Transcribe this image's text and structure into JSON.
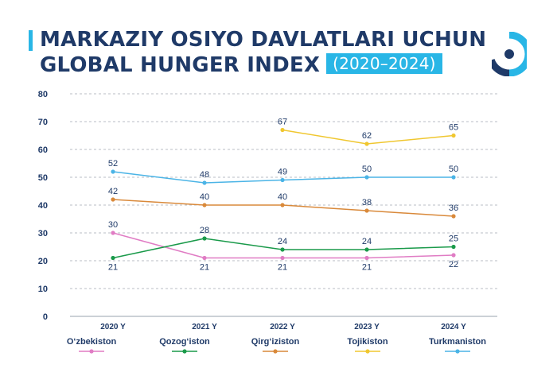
{
  "header": {
    "title_line1": "MARKAZIY OSIYO DAVLATLARI UCHUN",
    "title_line2": "GLOBAL HUNGER INDEX",
    "years": "(2020–2024)",
    "accent": "#29b6e6",
    "title_color": "#1f3a68"
  },
  "logo": {
    "icon": "brand-logo-icon"
  },
  "chart_data": {
    "type": "line",
    "categories": [
      "2020 Y",
      "2021 Y",
      "2022 Y",
      "2023 Y",
      "2024 Y"
    ],
    "ylim": [
      0,
      80
    ],
    "yticks": [
      0,
      10,
      20,
      30,
      40,
      50,
      60,
      70,
      80
    ],
    "grid": true,
    "legend": "bottom",
    "series": [
      {
        "name": "O‘zbekiston",
        "color": "#e07cc4",
        "values": [
          30,
          21,
          21,
          21,
          22
        ],
        "labels": [
          "30",
          "21",
          "21",
          "21",
          "22"
        ],
        "label_pos": [
          "above",
          "below",
          "below",
          "below",
          "below"
        ]
      },
      {
        "name": "Qozog‘iston",
        "color": "#1a9a4a",
        "values": [
          21,
          28,
          24,
          24,
          25
        ],
        "labels": [
          "21",
          "28",
          "24",
          "24",
          "25"
        ],
        "label_pos": [
          "below",
          "above",
          "above",
          "above",
          "above"
        ]
      },
      {
        "name": "Qirg‘iziston",
        "color": "#d9893a",
        "values": [
          42,
          40,
          40,
          38,
          36
        ],
        "labels": [
          "42",
          "40",
          "40",
          "38",
          "36"
        ],
        "label_pos": [
          "above",
          "above",
          "above",
          "above",
          "above"
        ]
      },
      {
        "name": "Tojikiston",
        "color": "#f0c730",
        "values": [
          null,
          null,
          67,
          62,
          65
        ],
        "labels": [
          null,
          null,
          "67",
          "62",
          "65"
        ],
        "label_pos": [
          "above",
          "above",
          "above",
          "above",
          "above"
        ]
      },
      {
        "name": "Turkmaniston",
        "color": "#4bb4e6",
        "values": [
          52,
          48,
          49,
          50,
          50
        ],
        "labels": [
          "52",
          "48",
          "49",
          "50",
          "50"
        ],
        "label_pos": [
          "above",
          "above",
          "above",
          "above",
          "above"
        ]
      }
    ]
  }
}
